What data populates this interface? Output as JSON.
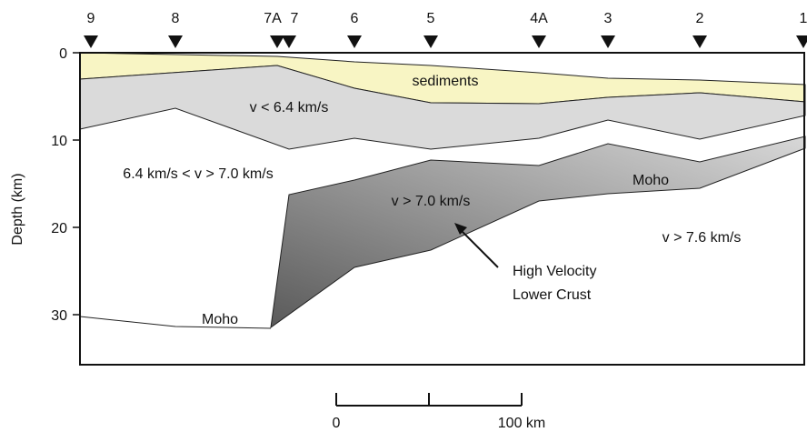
{
  "stations": [
    "9",
    "8",
    "7A",
    "7",
    "6",
    "5",
    "4A",
    "3",
    "2",
    "1"
  ],
  "axis": {
    "label": "Depth (km)",
    "ticks": [
      "0",
      "10",
      "20",
      "30"
    ]
  },
  "regions": {
    "sediments": "sediments",
    "upper_crust": "v < 6.4 km/s",
    "middle_crust": "6.4 km/s < v > 7.0 km/s",
    "hvlc": "v > 7.0 km/s",
    "moho_right": "Moho",
    "mantle": "v > 7.6 km/s",
    "moho_left": "Moho"
  },
  "callout": [
    "High Velocity",
    "Lower Crust"
  ],
  "scale_bar": {
    "start": "0",
    "end": "100 km"
  }
}
